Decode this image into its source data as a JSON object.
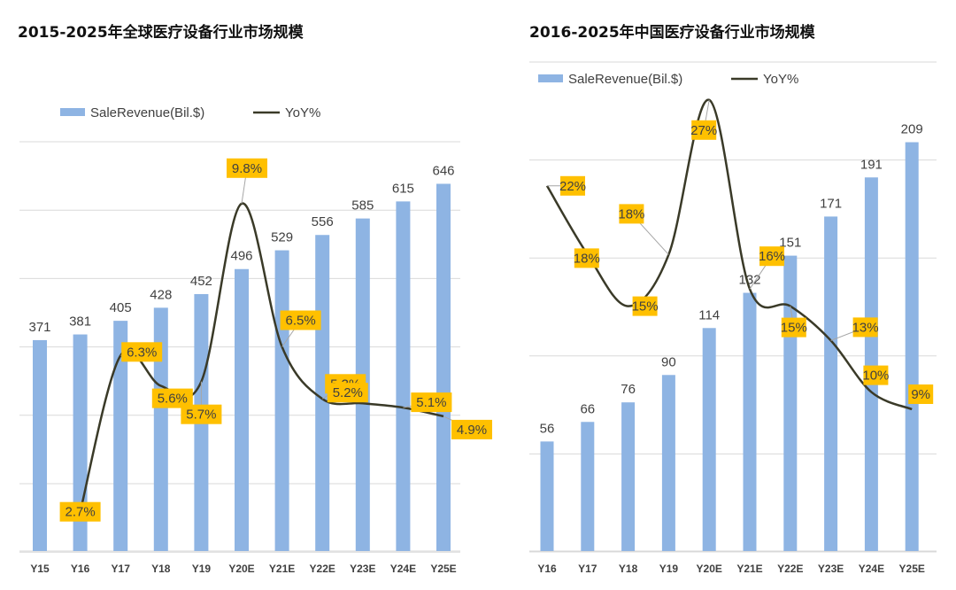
{
  "chart_data": [
    {
      "type": "bar",
      "title": "2015-2025年全球医疗设备行业市场规模",
      "categories": [
        "Y15",
        "Y16",
        "Y17",
        "Y18",
        "Y19",
        "Y20E",
        "Y21E",
        "Y22E",
        "Y23E",
        "Y24E",
        "Y25E"
      ],
      "series": [
        {
          "name": "SaleRevenue(Bil.$)",
          "type": "bar",
          "values": [
            371,
            381,
            405,
            428,
            452,
            496,
            529,
            556,
            585,
            615,
            646
          ]
        },
        {
          "name": "YoY%",
          "type": "line",
          "values": [
            null,
            2.7,
            6.3,
            5.6,
            5.7,
            9.8,
            6.5,
            5.3,
            5.2,
            5.1,
            4.9
          ],
          "labels": [
            null,
            "2.7%",
            "6.3%",
            "5.6%",
            "5.7%",
            "9.8%",
            "6.5%",
            "5.3%",
            "5.2%",
            "5.1%",
            "4.9%"
          ]
        }
      ],
      "legend": [
        "SaleRevenue(Bil.$)",
        "YoY%"
      ]
    },
    {
      "type": "bar",
      "title": "2016-2025年中国医疗设备行业市场规模",
      "categories": [
        "Y16",
        "Y17",
        "Y18",
        "Y19",
        "Y20E",
        "Y21E",
        "Y22E",
        "Y23E",
        "Y24E",
        "Y25E"
      ],
      "series": [
        {
          "name": "SaleRevenue(Bil.$)",
          "type": "bar",
          "values": [
            56,
            66,
            76,
            90,
            114,
            132,
            151,
            171,
            191,
            209
          ]
        },
        {
          "name": "YoY%",
          "type": "line",
          "values": [
            22,
            18,
            15,
            18,
            27,
            16,
            15,
            13,
            10,
            9
          ],
          "labels": [
            "22%",
            "18%",
            "15%",
            "18%",
            "27%",
            "16%",
            "15%",
            "13%",
            "10%",
            "9%"
          ]
        }
      ],
      "legend": [
        "SaleRevenue(Bil.$)",
        "YoY%"
      ]
    }
  ],
  "colors": {
    "bar": "#8eb4e3",
    "label_box": "#ffc000",
    "line": "#3a3a28",
    "grid": "#d9d9d9"
  }
}
